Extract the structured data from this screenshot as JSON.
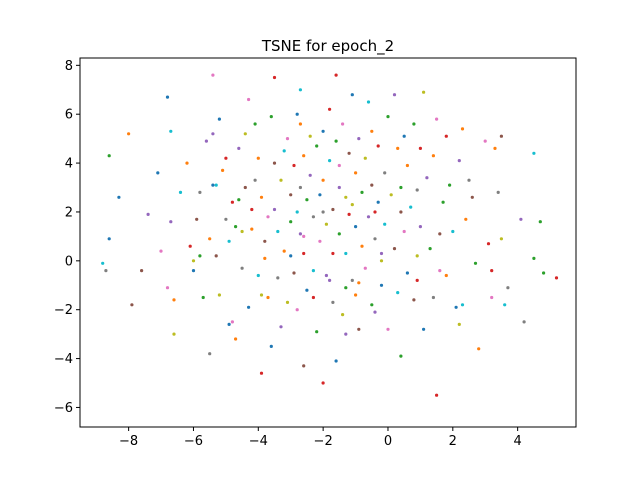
{
  "chart_data": {
    "type": "scatter",
    "title": "TSNE for epoch_2",
    "xlabel": "",
    "ylabel": "",
    "xlim": [
      -9.5,
      5.8
    ],
    "ylim": [
      -6.8,
      8.3
    ],
    "xticks": [
      -8,
      -6,
      -4,
      -2,
      0,
      2,
      4
    ],
    "yticks": [
      -6,
      -4,
      -2,
      0,
      2,
      4,
      6,
      8
    ],
    "xtick_labels": [
      "−8",
      "−6",
      "−4",
      "−2",
      "0",
      "2",
      "4"
    ],
    "ytick_labels": [
      "−6",
      "−4",
      "−2",
      "0",
      "2",
      "4",
      "6",
      "8"
    ],
    "grid": false,
    "legend": "none",
    "palette": [
      "#1f77b4",
      "#ff7f0e",
      "#2ca02c",
      "#d62728",
      "#9467bd",
      "#8c564b",
      "#e377c2",
      "#7f7f7f",
      "#bcbd22",
      "#17becf"
    ],
    "points": [
      {
        "x": -8.8,
        "y": -0.1,
        "c": 9
      },
      {
        "x": -8.7,
        "y": -0.4,
        "c": 7
      },
      {
        "x": -8.6,
        "y": 4.3,
        "c": 2
      },
      {
        "x": -8.6,
        "y": 0.9,
        "c": 0
      },
      {
        "x": -8.3,
        "y": 2.6,
        "c": 0
      },
      {
        "x": -8.0,
        "y": 5.2,
        "c": 1
      },
      {
        "x": -7.9,
        "y": -1.8,
        "c": 5
      },
      {
        "x": -7.6,
        "y": -0.4,
        "c": 5
      },
      {
        "x": -7.4,
        "y": 1.9,
        "c": 4
      },
      {
        "x": -7.1,
        "y": 3.6,
        "c": 0
      },
      {
        "x": -7.0,
        "y": 0.4,
        "c": 6
      },
      {
        "x": -6.8,
        "y": 6.7,
        "c": 0
      },
      {
        "x": -6.8,
        "y": -1.1,
        "c": 6
      },
      {
        "x": -6.7,
        "y": 5.3,
        "c": 9
      },
      {
        "x": -6.7,
        "y": 1.6,
        "c": 4
      },
      {
        "x": -6.6,
        "y": -1.6,
        "c": 1
      },
      {
        "x": -6.6,
        "y": -3.0,
        "c": 8
      },
      {
        "x": -6.4,
        "y": 2.8,
        "c": 9
      },
      {
        "x": -6.2,
        "y": 4.0,
        "c": 1
      },
      {
        "x": -6.1,
        "y": 0.6,
        "c": 3
      },
      {
        "x": -6.0,
        "y": 0.0,
        "c": 8
      },
      {
        "x": -6.0,
        "y": -0.4,
        "c": 0
      },
      {
        "x": -5.9,
        "y": 1.7,
        "c": 5
      },
      {
        "x": -5.8,
        "y": 2.8,
        "c": 7
      },
      {
        "x": -5.7,
        "y": -1.5,
        "c": 2
      },
      {
        "x": -5.6,
        "y": 4.9,
        "c": 4
      },
      {
        "x": -5.5,
        "y": 0.9,
        "c": 1
      },
      {
        "x": -5.5,
        "y": -3.8,
        "c": 7
      },
      {
        "x": -5.4,
        "y": 7.6,
        "c": 6
      },
      {
        "x": -5.4,
        "y": 3.1,
        "c": 0
      },
      {
        "x": -5.4,
        "y": 5.2,
        "c": 4
      },
      {
        "x": -5.3,
        "y": 3.1,
        "c": 9
      },
      {
        "x": -5.3,
        "y": 0.2,
        "c": 5
      },
      {
        "x": -5.2,
        "y": -1.4,
        "c": 8
      },
      {
        "x": -5.2,
        "y": 5.8,
        "c": 0
      },
      {
        "x": -5.1,
        "y": 3.7,
        "c": 1
      },
      {
        "x": -5.0,
        "y": 1.7,
        "c": 7
      },
      {
        "x": -4.9,
        "y": 0.8,
        "c": 9
      },
      {
        "x": -4.9,
        "y": -2.6,
        "c": 0
      },
      {
        "x": -4.8,
        "y": 2.4,
        "c": 3
      },
      {
        "x": -4.8,
        "y": -2.5,
        "c": 6
      },
      {
        "x": -4.7,
        "y": 1.4,
        "c": 2
      },
      {
        "x": -4.7,
        "y": -3.2,
        "c": 1
      },
      {
        "x": -4.6,
        "y": 4.6,
        "c": 4
      },
      {
        "x": -4.6,
        "y": 2.5,
        "c": 2
      },
      {
        "x": -4.5,
        "y": 1.2,
        "c": 8
      },
      {
        "x": -4.4,
        "y": 5.2,
        "c": 8
      },
      {
        "x": -4.4,
        "y": 3.0,
        "c": 5
      },
      {
        "x": -4.3,
        "y": -1.9,
        "c": 0
      },
      {
        "x": -4.3,
        "y": 6.6,
        "c": 6
      },
      {
        "x": -4.2,
        "y": 2.1,
        "c": 3
      },
      {
        "x": -4.2,
        "y": 1.3,
        "c": 1
      },
      {
        "x": -4.1,
        "y": 3.3,
        "c": 7
      },
      {
        "x": -4.1,
        "y": 5.6,
        "c": 2
      },
      {
        "x": -4.0,
        "y": 4.2,
        "c": 1
      },
      {
        "x": -4.0,
        "y": -0.6,
        "c": 9
      },
      {
        "x": -3.9,
        "y": -4.6,
        "c": 3
      },
      {
        "x": -3.9,
        "y": 2.6,
        "c": 1
      },
      {
        "x": -3.8,
        "y": 0.8,
        "c": 5
      },
      {
        "x": -3.7,
        "y": 1.8,
        "c": 6
      },
      {
        "x": -3.7,
        "y": -1.5,
        "c": 1
      },
      {
        "x": -3.6,
        "y": 5.9,
        "c": 2
      },
      {
        "x": -3.6,
        "y": -3.5,
        "c": 0
      },
      {
        "x": -3.5,
        "y": 7.5,
        "c": 3
      },
      {
        "x": -3.5,
        "y": 4.0,
        "c": 5
      },
      {
        "x": -3.5,
        "y": 2.1,
        "c": 4
      },
      {
        "x": -3.4,
        "y": 1.2,
        "c": 9
      },
      {
        "x": -3.4,
        "y": -0.7,
        "c": 7
      },
      {
        "x": -3.3,
        "y": -2.7,
        "c": 4
      },
      {
        "x": -3.3,
        "y": 3.3,
        "c": 8
      },
      {
        "x": -3.2,
        "y": 4.5,
        "c": 9
      },
      {
        "x": -3.2,
        "y": 0.4,
        "c": 1
      },
      {
        "x": -3.1,
        "y": 5.0,
        "c": 6
      },
      {
        "x": -3.1,
        "y": -1.7,
        "c": 8
      },
      {
        "x": -3.0,
        "y": 2.7,
        "c": 5
      },
      {
        "x": -3.0,
        "y": 1.6,
        "c": 2
      },
      {
        "x": -2.9,
        "y": 3.9,
        "c": 3
      },
      {
        "x": -2.9,
        "y": -0.5,
        "c": 5
      },
      {
        "x": -2.8,
        "y": 6.0,
        "c": 0
      },
      {
        "x": -2.8,
        "y": 2.0,
        "c": 9
      },
      {
        "x": -2.8,
        "y": -2.0,
        "c": 6
      },
      {
        "x": -2.7,
        "y": 7.0,
        "c": 9
      },
      {
        "x": -2.7,
        "y": 5.6,
        "c": 1
      },
      {
        "x": -2.7,
        "y": 3.0,
        "c": 7
      },
      {
        "x": -2.7,
        "y": 1.1,
        "c": 4
      },
      {
        "x": -2.6,
        "y": 4.3,
        "c": 1
      },
      {
        "x": -2.6,
        "y": -4.3,
        "c": 5
      },
      {
        "x": -2.6,
        "y": 0.3,
        "c": 3
      },
      {
        "x": -2.5,
        "y": 2.5,
        "c": 2
      },
      {
        "x": -2.5,
        "y": -1.2,
        "c": 0
      },
      {
        "x": -2.4,
        "y": 5.1,
        "c": 8
      },
      {
        "x": -2.4,
        "y": 3.5,
        "c": 4
      },
      {
        "x": -2.3,
        "y": 1.8,
        "c": 7
      },
      {
        "x": -2.3,
        "y": -0.4,
        "c": 9
      },
      {
        "x": -2.2,
        "y": 4.7,
        "c": 2
      },
      {
        "x": -2.2,
        "y": -2.9,
        "c": 2
      },
      {
        "x": -2.1,
        "y": 2.7,
        "c": 0
      },
      {
        "x": -2.1,
        "y": 0.8,
        "c": 6
      },
      {
        "x": -2.0,
        "y": 5.3,
        "c": 0
      },
      {
        "x": -2.0,
        "y": 3.3,
        "c": 1
      },
      {
        "x": -2.0,
        "y": -5.0,
        "c": 3
      },
      {
        "x": -1.9,
        "y": 1.5,
        "c": 8
      },
      {
        "x": -1.9,
        "y": -0.6,
        "c": 4
      },
      {
        "x": -1.8,
        "y": 6.2,
        "c": 3
      },
      {
        "x": -1.8,
        "y": 4.1,
        "c": 9
      },
      {
        "x": -1.7,
        "y": 2.1,
        "c": 5
      },
      {
        "x": -1.7,
        "y": 0.3,
        "c": 3
      },
      {
        "x": -1.7,
        "y": -1.7,
        "c": 7
      },
      {
        "x": -1.6,
        "y": 7.6,
        "c": 3
      },
      {
        "x": -1.6,
        "y": 4.9,
        "c": 2
      },
      {
        "x": -1.6,
        "y": -4.1,
        "c": 0
      },
      {
        "x": -1.5,
        "y": 3.0,
        "c": 4
      },
      {
        "x": -1.5,
        "y": 1.1,
        "c": 2
      },
      {
        "x": -1.4,
        "y": -2.2,
        "c": 8
      },
      {
        "x": -1.4,
        "y": 5.6,
        "c": 6
      },
      {
        "x": -1.3,
        "y": 2.6,
        "c": 8
      },
      {
        "x": -1.3,
        "y": 0.3,
        "c": 9
      },
      {
        "x": -1.3,
        "y": -3.0,
        "c": 4
      },
      {
        "x": -1.2,
        "y": 4.4,
        "c": 5
      },
      {
        "x": -1.2,
        "y": 1.9,
        "c": 3
      },
      {
        "x": -1.1,
        "y": 6.8,
        "c": 0
      },
      {
        "x": -1.1,
        "y": -0.8,
        "c": 7
      },
      {
        "x": -1.0,
        "y": 3.6,
        "c": 1
      },
      {
        "x": -1.0,
        "y": -1.4,
        "c": 1
      },
      {
        "x": -1.0,
        "y": 1.4,
        "c": 0
      },
      {
        "x": -0.9,
        "y": 5.0,
        "c": 4
      },
      {
        "x": -0.9,
        "y": -2.8,
        "c": 5
      },
      {
        "x": -0.8,
        "y": 2.8,
        "c": 2
      },
      {
        "x": -0.8,
        "y": 0.6,
        "c": 1
      },
      {
        "x": -0.7,
        "y": 4.2,
        "c": 8
      },
      {
        "x": -0.7,
        "y": -0.3,
        "c": 6
      },
      {
        "x": -0.6,
        "y": 6.5,
        "c": 9
      },
      {
        "x": -0.6,
        "y": 1.8,
        "c": 4
      },
      {
        "x": -0.5,
        "y": -1.8,
        "c": 2
      },
      {
        "x": -0.5,
        "y": 5.3,
        "c": 1
      },
      {
        "x": -0.5,
        "y": 3.1,
        "c": 5
      },
      {
        "x": -0.4,
        "y": 0.9,
        "c": 7
      },
      {
        "x": -0.4,
        "y": -2.1,
        "c": 4
      },
      {
        "x": -0.3,
        "y": 2.4,
        "c": 0
      },
      {
        "x": -0.3,
        "y": 4.7,
        "c": 3
      },
      {
        "x": -0.2,
        "y": 0.0,
        "c": 8
      },
      {
        "x": -0.2,
        "y": -1.0,
        "c": 0
      },
      {
        "x": -0.1,
        "y": 3.6,
        "c": 7
      },
      {
        "x": -0.1,
        "y": 1.5,
        "c": 9
      },
      {
        "x": 0.0,
        "y": 5.9,
        "c": 2
      },
      {
        "x": 0.0,
        "y": -2.8,
        "c": 6
      },
      {
        "x": 0.1,
        "y": 2.7,
        "c": 8
      },
      {
        "x": 0.2,
        "y": 6.8,
        "c": 4
      },
      {
        "x": 0.2,
        "y": 0.5,
        "c": 5
      },
      {
        "x": 0.3,
        "y": 4.6,
        "c": 1
      },
      {
        "x": 0.3,
        "y": -1.3,
        "c": 9
      },
      {
        "x": 0.4,
        "y": 3.0,
        "c": 2
      },
      {
        "x": 0.4,
        "y": -3.9,
        "c": 2
      },
      {
        "x": 0.5,
        "y": 1.2,
        "c": 6
      },
      {
        "x": 0.5,
        "y": 5.1,
        "c": 0
      },
      {
        "x": 0.6,
        "y": 3.9,
        "c": 1
      },
      {
        "x": 0.6,
        "y": -0.5,
        "c": 0
      },
      {
        "x": 0.7,
        "y": 2.2,
        "c": 9
      },
      {
        "x": 0.8,
        "y": 5.6,
        "c": 2
      },
      {
        "x": 0.8,
        "y": -1.6,
        "c": 5
      },
      {
        "x": 0.9,
        "y": 2.9,
        "c": 7
      },
      {
        "x": 0.9,
        "y": 0.2,
        "c": 8
      },
      {
        "x": 1.0,
        "y": 4.6,
        "c": 3
      },
      {
        "x": 1.0,
        "y": 1.4,
        "c": 4
      },
      {
        "x": 1.1,
        "y": -2.8,
        "c": 0
      },
      {
        "x": 1.1,
        "y": 6.9,
        "c": 8
      },
      {
        "x": 1.2,
        "y": 3.4,
        "c": 4
      },
      {
        "x": 1.3,
        "y": 0.5,
        "c": 2
      },
      {
        "x": 1.4,
        "y": 4.3,
        "c": 1
      },
      {
        "x": 1.4,
        "y": -1.5,
        "c": 7
      },
      {
        "x": 1.5,
        "y": 5.8,
        "c": 6
      },
      {
        "x": 1.5,
        "y": -5.5,
        "c": 3
      },
      {
        "x": 1.6,
        "y": 1.1,
        "c": 5
      },
      {
        "x": 1.6,
        "y": -0.4,
        "c": 6
      },
      {
        "x": 1.7,
        "y": 2.4,
        "c": 2
      },
      {
        "x": 1.8,
        "y": 5.1,
        "c": 3
      },
      {
        "x": 1.9,
        "y": 3.1,
        "c": 2
      },
      {
        "x": 2.0,
        "y": 1.2,
        "c": 9
      },
      {
        "x": 2.1,
        "y": -1.9,
        "c": 0
      },
      {
        "x": 2.2,
        "y": 4.1,
        "c": 4
      },
      {
        "x": 2.2,
        "y": -2.6,
        "c": 8
      },
      {
        "x": 2.3,
        "y": 5.4,
        "c": 1
      },
      {
        "x": 2.3,
        "y": -1.8,
        "c": 9
      },
      {
        "x": 2.4,
        "y": 1.7,
        "c": 1
      },
      {
        "x": 2.5,
        "y": 3.3,
        "c": 7
      },
      {
        "x": 2.6,
        "y": 2.6,
        "c": 5
      },
      {
        "x": 2.7,
        "y": -0.1,
        "c": 2
      },
      {
        "x": 2.8,
        "y": -3.6,
        "c": 1
      },
      {
        "x": 3.0,
        "y": 4.9,
        "c": 6
      },
      {
        "x": 3.1,
        "y": 0.7,
        "c": 3
      },
      {
        "x": 3.2,
        "y": -0.4,
        "c": 3
      },
      {
        "x": 3.2,
        "y": -1.5,
        "c": 6
      },
      {
        "x": 3.3,
        "y": 4.6,
        "c": 1
      },
      {
        "x": 3.4,
        "y": 2.8,
        "c": 7
      },
      {
        "x": 3.5,
        "y": 5.1,
        "c": 5
      },
      {
        "x": 3.5,
        "y": 0.9,
        "c": 8
      },
      {
        "x": 3.6,
        "y": -1.8,
        "c": 9
      },
      {
        "x": 3.7,
        "y": -1.1,
        "c": 7
      },
      {
        "x": 4.1,
        "y": 1.7,
        "c": 4
      },
      {
        "x": 4.2,
        "y": -2.5,
        "c": 7
      },
      {
        "x": 4.5,
        "y": 4.4,
        "c": 9
      },
      {
        "x": 4.5,
        "y": 0.1,
        "c": 2
      },
      {
        "x": 4.7,
        "y": 1.6,
        "c": 2
      },
      {
        "x": 4.8,
        "y": -0.5,
        "c": 2
      },
      {
        "x": 5.2,
        "y": -0.7,
        "c": 3
      },
      {
        "x": -0.4,
        "y": 2.0,
        "c": 3
      },
      {
        "x": -2.0,
        "y": 2.0,
        "c": 7
      },
      {
        "x": -3.8,
        "y": 0.1,
        "c": 1
      },
      {
        "x": -5.8,
        "y": 0.2,
        "c": 2
      },
      {
        "x": 0.4,
        "y": 2.0,
        "c": 5
      },
      {
        "x": -1.5,
        "y": 3.9,
        "c": 6
      },
      {
        "x": -3.0,
        "y": 0.2,
        "c": 0
      },
      {
        "x": -4.5,
        "y": -0.3,
        "c": 7
      },
      {
        "x": -2.3,
        "y": -1.5,
        "c": 3
      },
      {
        "x": -1.8,
        "y": -0.8,
        "c": 4
      },
      {
        "x": -0.9,
        "y": -0.9,
        "c": 1
      },
      {
        "x": 0.9,
        "y": -0.8,
        "c": 3
      },
      {
        "x": 1.8,
        "y": -0.6,
        "c": 1
      },
      {
        "x": -5.0,
        "y": 4.2,
        "c": 3
      },
      {
        "x": -1.3,
        "y": -1.1,
        "c": 2
      },
      {
        "x": -3.9,
        "y": -1.4,
        "c": 8
      },
      {
        "x": -2.6,
        "y": 1.0,
        "c": 6
      },
      {
        "x": -1.1,
        "y": 2.3,
        "c": 8
      },
      {
        "x": -0.2,
        "y": 0.3,
        "c": 4
      }
    ]
  }
}
